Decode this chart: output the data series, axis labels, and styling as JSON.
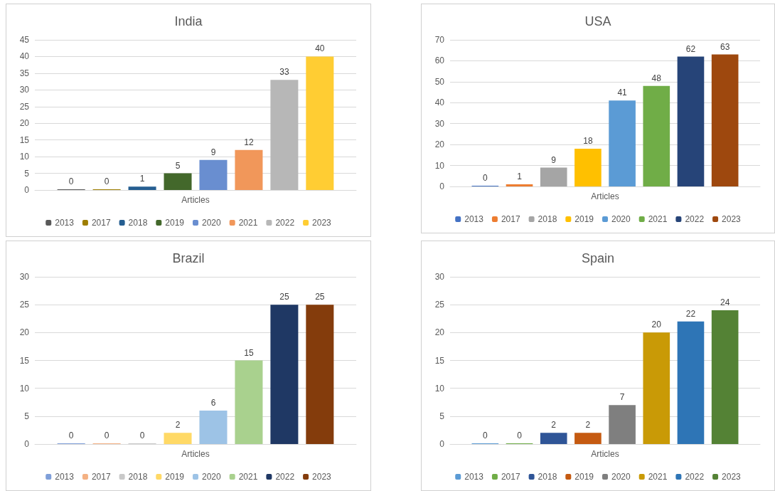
{
  "chart_data": [
    {
      "type": "bar",
      "title": "India",
      "categories": [
        "Articles"
      ],
      "ylim": [
        0,
        45
      ],
      "yticks": [
        0,
        5,
        10,
        15,
        20,
        25,
        30,
        35,
        40,
        45
      ],
      "grid": "y",
      "legend": "bottom",
      "data_labels": true,
      "series": [
        {
          "name": "2013",
          "color": "#595959",
          "values": [
            0
          ]
        },
        {
          "name": "2017",
          "color": "#9e7e00",
          "values": [
            0
          ]
        },
        {
          "name": "2018",
          "color": "#255e91",
          "values": [
            1
          ]
        },
        {
          "name": "2019",
          "color": "#43682b",
          "values": [
            5
          ]
        },
        {
          "name": "2020",
          "color": "#698ed0",
          "values": [
            9
          ]
        },
        {
          "name": "2021",
          "color": "#f1975a",
          "values": [
            12
          ]
        },
        {
          "name": "2022",
          "color": "#b7b7b7",
          "values": [
            33
          ]
        },
        {
          "name": "2023",
          "color": "#ffcd33",
          "values": [
            40
          ]
        }
      ]
    },
    {
      "type": "bar",
      "title": "USA",
      "categories": [
        "Articles"
      ],
      "ylim": [
        0,
        70
      ],
      "yticks": [
        0,
        10,
        20,
        30,
        40,
        50,
        60,
        70
      ],
      "grid": "y",
      "legend": "bottom",
      "data_labels": true,
      "series": [
        {
          "name": "2013",
          "color": "#4472c4",
          "values": [
            0
          ]
        },
        {
          "name": "2017",
          "color": "#ed7d31",
          "values": [
            1
          ]
        },
        {
          "name": "2018",
          "color": "#a5a5a5",
          "values": [
            9
          ]
        },
        {
          "name": "2019",
          "color": "#ffc000",
          "values": [
            18
          ]
        },
        {
          "name": "2020",
          "color": "#5b9bd5",
          "values": [
            41
          ]
        },
        {
          "name": "2021",
          "color": "#70ad47",
          "values": [
            48
          ]
        },
        {
          "name": "2022",
          "color": "#264478",
          "values": [
            62
          ]
        },
        {
          "name": "2023",
          "color": "#9e480e",
          "values": [
            63
          ]
        }
      ]
    },
    {
      "type": "bar",
      "title": "Brazil",
      "categories": [
        "Articles"
      ],
      "ylim": [
        0,
        30
      ],
      "yticks": [
        0,
        5,
        10,
        15,
        20,
        25,
        30
      ],
      "grid": "y",
      "legend": "bottom",
      "data_labels": true,
      "series": [
        {
          "name": "2013",
          "color": "#7f9fd9",
          "values": [
            0
          ]
        },
        {
          "name": "2017",
          "color": "#f4b183",
          "values": [
            0
          ]
        },
        {
          "name": "2018",
          "color": "#c9c9c9",
          "values": [
            0
          ]
        },
        {
          "name": "2019",
          "color": "#ffd966",
          "values": [
            2
          ]
        },
        {
          "name": "2020",
          "color": "#9dc3e6",
          "values": [
            6
          ]
        },
        {
          "name": "2021",
          "color": "#a9d18e",
          "values": [
            15
          ]
        },
        {
          "name": "2022",
          "color": "#1f3864",
          "values": [
            25
          ]
        },
        {
          "name": "2023",
          "color": "#843c0c",
          "values": [
            25
          ]
        }
      ]
    },
    {
      "type": "bar",
      "title": "Spain",
      "categories": [
        "Articles"
      ],
      "ylim": [
        0,
        30
      ],
      "yticks": [
        0,
        5,
        10,
        15,
        20,
        25,
        30
      ],
      "grid": "y",
      "legend": "bottom",
      "data_labels": true,
      "series": [
        {
          "name": "2013",
          "color": "#5b9bd5",
          "values": [
            0
          ]
        },
        {
          "name": "2017",
          "color": "#70ad47",
          "values": [
            0
          ]
        },
        {
          "name": "2018",
          "color": "#2f5597",
          "values": [
            2
          ]
        },
        {
          "name": "2019",
          "color": "#c55a11",
          "values": [
            2
          ]
        },
        {
          "name": "2020",
          "color": "#7f7f7f",
          "values": [
            7
          ]
        },
        {
          "name": "2021",
          "color": "#c99a06",
          "values": [
            20
          ]
        },
        {
          "name": "2022",
          "color": "#2e75b6",
          "values": [
            22
          ]
        },
        {
          "name": "2023",
          "color": "#548235",
          "values": [
            24
          ]
        }
      ]
    }
  ]
}
